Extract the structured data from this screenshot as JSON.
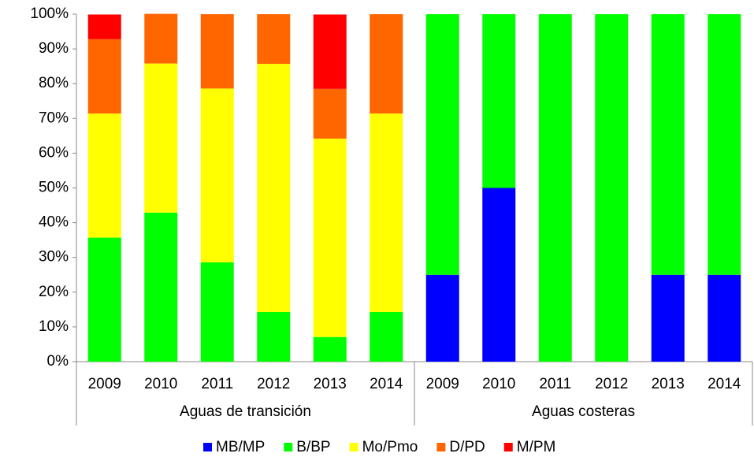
{
  "chart_data": {
    "type": "stacked_bar",
    "groups": [
      {
        "name": "Aguas de transición",
        "categories": [
          "2009",
          "2010",
          "2011",
          "2012",
          "2013",
          "2014"
        ]
      },
      {
        "name": "Aguas costeras",
        "categories": [
          "2009",
          "2010",
          "2011",
          "2012",
          "2013",
          "2014"
        ]
      }
    ],
    "series": [
      {
        "name": "MB/MP",
        "color": "#0000ff",
        "values": [
          0,
          0,
          0,
          0,
          0,
          0,
          25,
          50,
          0,
          0,
          25,
          25
        ]
      },
      {
        "name": "B/BP",
        "color": "#00ff00",
        "values": [
          35.7,
          42.9,
          28.6,
          14.3,
          7.1,
          14.3,
          75,
          50,
          100,
          100,
          75,
          75
        ]
      },
      {
        "name": "Mo/Pmo",
        "color": "#ffff00",
        "values": [
          35.7,
          42.9,
          50,
          71.4,
          57.1,
          57.1,
          0,
          0,
          0,
          0,
          0,
          0
        ]
      },
      {
        "name": "D/PD",
        "color": "#ff6600",
        "values": [
          21.4,
          14.3,
          21.4,
          14.3,
          14.3,
          28.6,
          0,
          0,
          0,
          0,
          0,
          0
        ]
      },
      {
        "name": "M/PM",
        "color": "#ff0000",
        "values": [
          7.1,
          0,
          0,
          0,
          21.4,
          0,
          0,
          0,
          0,
          0,
          0,
          0
        ]
      }
    ],
    "ylim": [
      0,
      100
    ],
    "yticks": [
      {
        "value": 0,
        "label": "0%"
      },
      {
        "value": 10,
        "label": "10%"
      },
      {
        "value": 20,
        "label": "20%"
      },
      {
        "value": 30,
        "label": "30%"
      },
      {
        "value": 40,
        "label": "40%"
      },
      {
        "value": 50,
        "label": "50%"
      },
      {
        "value": 60,
        "label": "60%"
      },
      {
        "value": 70,
        "label": "70%"
      },
      {
        "value": 80,
        "label": "80%"
      },
      {
        "value": 90,
        "label": "90%"
      },
      {
        "value": 100,
        "label": "100%"
      }
    ],
    "legend": "bottom"
  }
}
